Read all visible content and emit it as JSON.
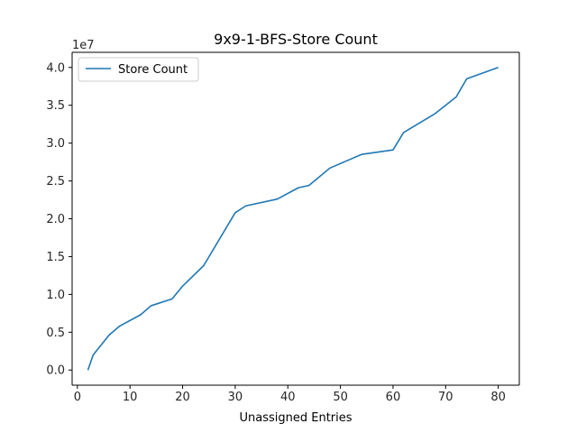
{
  "chart_data": {
    "type": "line",
    "title": "9x9-1-BFS-Store Count",
    "xlabel": "Unassigned Entries",
    "ylabel": "",
    "y_offset_label": "1e7",
    "xlim": [
      -1,
      84
    ],
    "ylim": [
      -0.2,
      4.2
    ],
    "x_ticks": [
      0,
      10,
      20,
      30,
      40,
      50,
      60,
      70,
      80
    ],
    "x_tick_labels": [
      "0",
      "10",
      "20",
      "30",
      "40",
      "50",
      "60",
      "70",
      "80"
    ],
    "y_ticks": [
      0.0,
      0.5,
      1.0,
      1.5,
      2.0,
      2.5,
      3.0,
      3.5,
      4.0
    ],
    "y_tick_labels": [
      "0.0",
      "0.5",
      "1.0",
      "1.5",
      "2.0",
      "2.5",
      "3.0",
      "3.5",
      "4.0"
    ],
    "grid": false,
    "legend_position": "top-left",
    "series": [
      {
        "name": "Store Count",
        "color": "#1f77b4",
        "x": [
          2,
          3,
          6,
          8,
          12,
          14,
          18,
          20,
          24,
          30,
          32,
          38,
          42,
          44,
          48,
          54,
          60,
          62,
          68,
          72,
          74,
          80
        ],
        "y": [
          0.0,
          0.2,
          0.46,
          0.58,
          0.73,
          0.85,
          0.94,
          1.11,
          1.38,
          2.08,
          2.17,
          2.26,
          2.41,
          2.44,
          2.67,
          2.85,
          2.91,
          3.14,
          3.39,
          3.61,
          3.85,
          4.0
        ]
      }
    ]
  }
}
